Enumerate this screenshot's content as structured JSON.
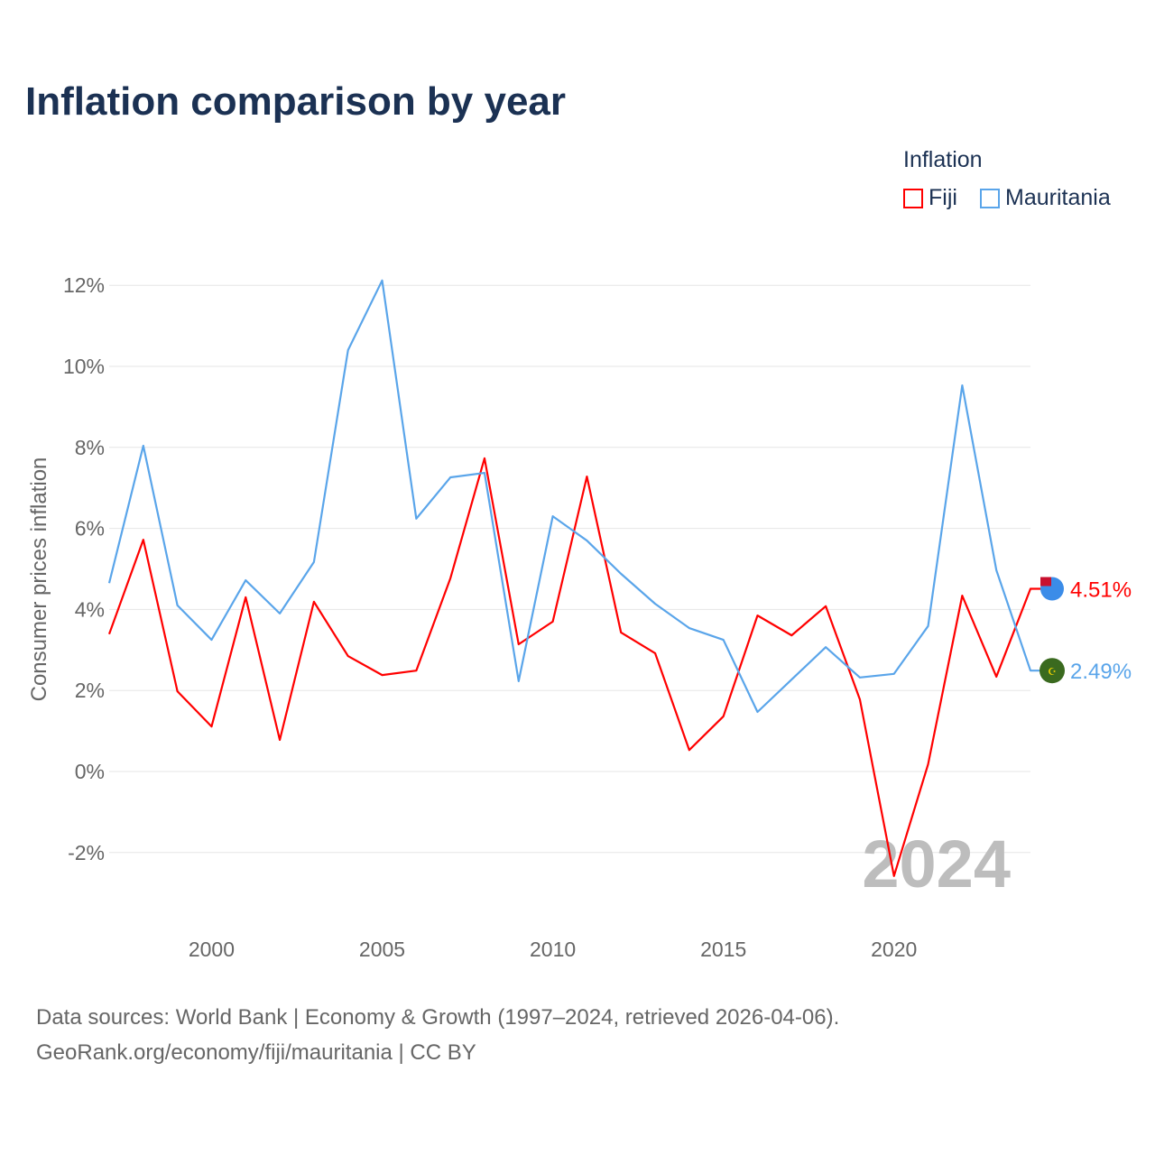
{
  "title": "Inflation comparison by year",
  "legend": {
    "title": "Inflation",
    "items": [
      {
        "name": "Fiji",
        "color": "#ff0000"
      },
      {
        "name": "Mauritania",
        "color": "#5aa5ea"
      }
    ]
  },
  "year_watermark": "2024",
  "source_lines": [
    "Data sources: World Bank | Economy & Growth (1997–2024, retrieved 2026-04-06).",
    "GeoRank.org/economy/fiji/mauritania | CC BY"
  ],
  "chart_data": {
    "type": "line",
    "title": "Inflation comparison by year",
    "xlabel": "",
    "ylabel": "Consumer prices inflation",
    "x": [
      1997,
      1998,
      1999,
      2000,
      2001,
      2002,
      2003,
      2004,
      2005,
      2006,
      2007,
      2008,
      2009,
      2010,
      2011,
      2012,
      2013,
      2014,
      2015,
      2016,
      2017,
      2018,
      2019,
      2020,
      2021,
      2022,
      2023,
      2024
    ],
    "xlim": [
      1997,
      2024
    ],
    "ylim": [
      -2.8,
      12.5
    ],
    "xticks": [
      2000,
      2005,
      2010,
      2015,
      2020
    ],
    "yticks": [
      -2,
      0,
      2,
      4,
      6,
      8,
      10,
      12
    ],
    "ytick_labels": [
      "-2%",
      "0%",
      "2%",
      "4%",
      "6%",
      "8%",
      "10%",
      "12%"
    ],
    "grid": true,
    "legend_position": "top-right",
    "series": [
      {
        "name": "Fiji",
        "color": "#ff0000",
        "end_label": "4.51%",
        "values": [
          3.39,
          5.72,
          1.98,
          1.11,
          4.3,
          0.78,
          4.19,
          2.85,
          2.38,
          2.49,
          4.77,
          7.73,
          3.14,
          3.7,
          7.28,
          3.43,
          2.92,
          0.53,
          1.36,
          3.85,
          3.36,
          4.08,
          1.78,
          -2.58,
          0.18,
          4.34,
          2.34,
          4.51
        ]
      },
      {
        "name": "Mauritania",
        "color": "#5aa5ea",
        "end_label": "2.49%",
        "values": [
          4.65,
          8.04,
          4.1,
          3.25,
          4.72,
          3.9,
          5.17,
          10.4,
          12.12,
          6.24,
          7.26,
          7.37,
          2.23,
          6.3,
          5.7,
          4.88,
          4.14,
          3.54,
          3.25,
          1.47,
          2.27,
          3.07,
          2.32,
          2.41,
          3.59,
          9.53,
          4.97,
          2.49
        ]
      }
    ]
  }
}
